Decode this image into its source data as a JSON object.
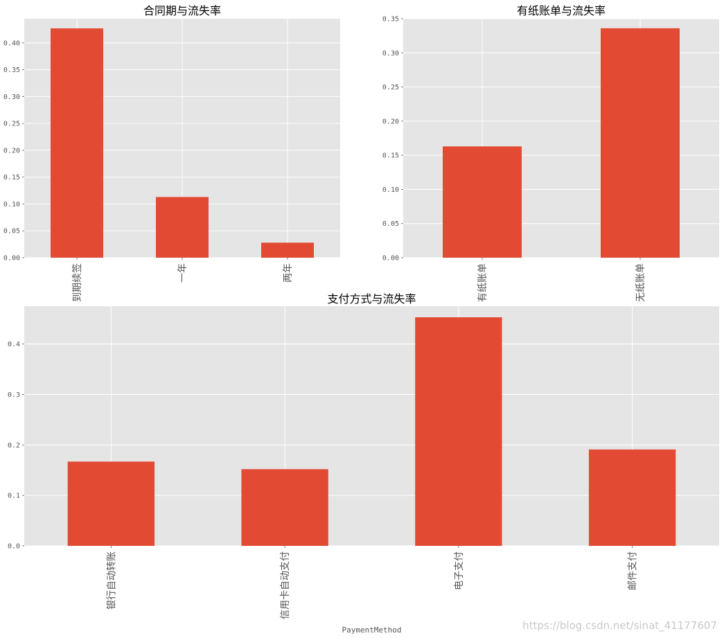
{
  "colors": {
    "bar": "#e24a33",
    "panel": "#e5e5e5",
    "grid": "#ffffff",
    "tick_text": "#555555"
  },
  "chart_data": [
    {
      "type": "bar",
      "title": "合同期与流失率",
      "categories": [
        "到期续签",
        "一年",
        "两年"
      ],
      "values": [
        0.427,
        0.113,
        0.028
      ],
      "xlabel": "",
      "ylabel": "",
      "ylim": [
        0,
        0.445
      ],
      "yticks": [
        0.0,
        0.05,
        0.1,
        0.15,
        0.2,
        0.25,
        0.3,
        0.35,
        0.4
      ],
      "ytick_labels": [
        "0.00",
        "0.05",
        "0.10",
        "0.15",
        "0.20",
        "0.25",
        "0.30",
        "0.35",
        "0.40"
      ],
      "grid": true
    },
    {
      "type": "bar",
      "title": "有纸账单与流失率",
      "categories": [
        "有纸账单",
        "无纸账单"
      ],
      "values": [
        0.163,
        0.336
      ],
      "xlabel": "",
      "ylabel": "",
      "ylim": [
        0,
        0.35
      ],
      "yticks": [
        0.0,
        0.05,
        0.1,
        0.15,
        0.2,
        0.25,
        0.3,
        0.35
      ],
      "ytick_labels": [
        "0.00",
        "0.05",
        "0.10",
        "0.15",
        "0.20",
        "0.25",
        "0.30",
        "0.35"
      ],
      "grid": true
    },
    {
      "type": "bar",
      "title": "支付方式与流失率",
      "categories": [
        "银行自动转账",
        "信用卡自动支付",
        "电子支付",
        "邮件支付"
      ],
      "values": [
        0.167,
        0.152,
        0.453,
        0.191
      ],
      "xlabel": "PaymentMethod",
      "ylabel": "",
      "ylim": [
        0,
        0.475
      ],
      "yticks": [
        0.0,
        0.1,
        0.2,
        0.3,
        0.4
      ],
      "ytick_labels": [
        "0.0",
        "0.1",
        "0.2",
        "0.3",
        "0.4"
      ],
      "grid": true
    }
  ],
  "watermark": "https://blog.csdn.net/sinat_41177607"
}
